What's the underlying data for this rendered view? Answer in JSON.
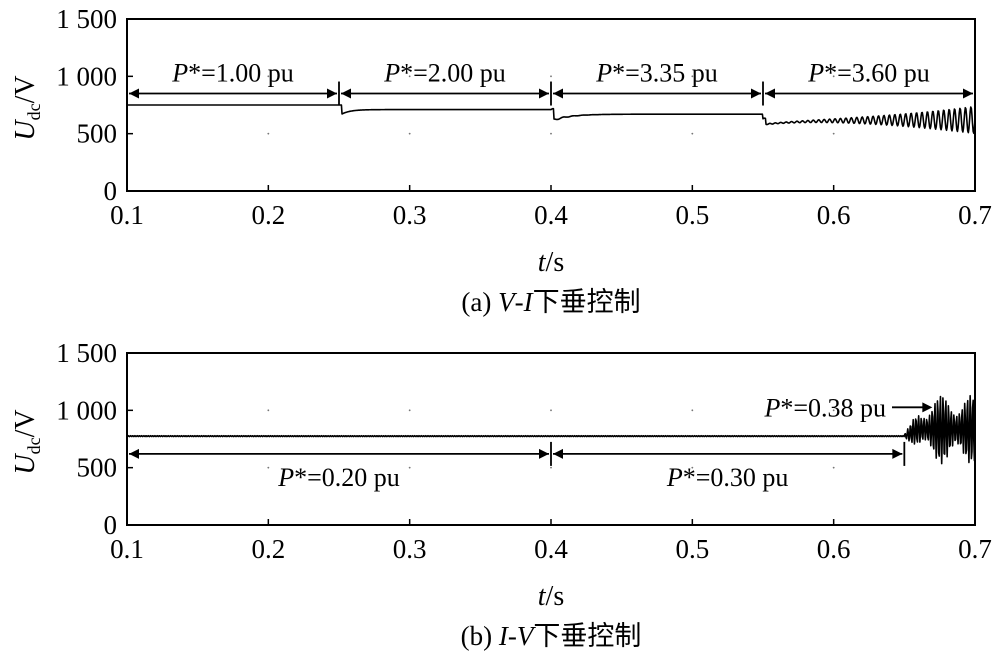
{
  "chart_data": [
    {
      "type": "line",
      "panel": "a",
      "caption": {
        "prefix": "(a) ",
        "v": "V",
        "dash": "-",
        "i": "I",
        "suffix": "下垂控制"
      },
      "xlabel": {
        "var": "t",
        "unit": "/s"
      },
      "ylabel": {
        "main": "U",
        "sub": "dc",
        "unit": "/V"
      },
      "xlim": [
        0.1,
        0.7
      ],
      "ylim": [
        0,
        1500
      ],
      "xticks": [
        "0.1",
        "0.2",
        "0.3",
        "0.4",
        "0.5",
        "0.6",
        "0.7"
      ],
      "yticks": [
        "0",
        "500",
        "1 000",
        "1 500"
      ],
      "segments": [
        {
          "t_start": 0.1,
          "t_end": 0.25,
          "label": "=1.00 pu",
          "level": 750
        },
        {
          "t_start": 0.25,
          "t_end": 0.4,
          "label": "=2.00 pu",
          "level": 710
        },
        {
          "t_start": 0.4,
          "t_end": 0.55,
          "label": "=3.35 pu",
          "level": 670
        },
        {
          "t_start": 0.55,
          "t_end": 0.7,
          "label": "=3.60 pu",
          "level": 620
        }
      ],
      "annotation_arrow_level": 850
    },
    {
      "type": "line",
      "panel": "b",
      "caption": {
        "prefix": "(b) ",
        "v": "I",
        "dash": "-",
        "i": "V",
        "suffix": "下垂控制"
      },
      "xlabel": {
        "var": "t",
        "unit": "/s"
      },
      "ylabel": {
        "main": "U",
        "sub": "dc",
        "unit": "/V"
      },
      "xlim": [
        0.1,
        0.7
      ],
      "ylim": [
        0,
        1500
      ],
      "xticks": [
        "0.1",
        "0.2",
        "0.3",
        "0.4",
        "0.5",
        "0.6",
        "0.7"
      ],
      "yticks": [
        "0",
        "500",
        "1 000",
        "1 500"
      ],
      "segments": [
        {
          "t_start": 0.1,
          "t_end": 0.4,
          "label": "=0.20 pu",
          "level": 775
        },
        {
          "t_start": 0.4,
          "t_end": 0.65,
          "label": "=0.30 pu",
          "level": 775
        },
        {
          "t_start": 0.65,
          "t_end": 0.7,
          "label": "=0.38 pu",
          "level": 900
        }
      ],
      "annotation_arrow_level": 620
    }
  ],
  "power_symbol": "P",
  "power_star": "*"
}
